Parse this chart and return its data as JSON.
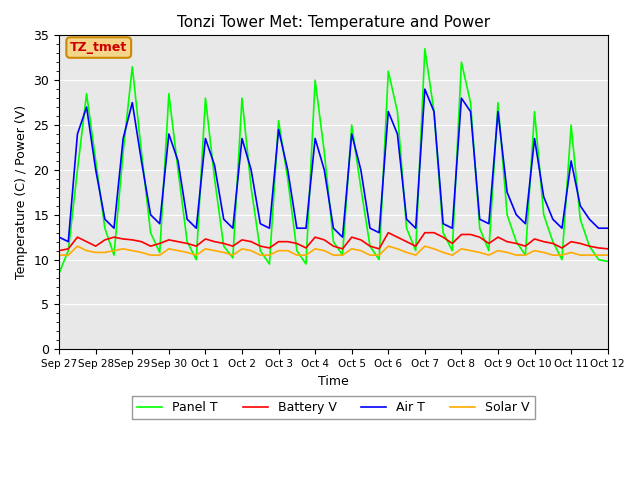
{
  "title": "Tonzi Tower Met: Temperature and Power",
  "xlabel": "Time",
  "ylabel": "Temperature (C) / Power (V)",
  "ylim": [
    0,
    35
  ],
  "yticks": [
    0,
    5,
    10,
    15,
    20,
    25,
    30,
    35
  ],
  "background_color": "#e8e8e8",
  "figure_color": "#ffffff",
  "annotation_text": "TZ_tmet",
  "annotation_color": "#cc0000",
  "annotation_bg": "#f5d58a",
  "annotation_border": "#cc8800",
  "line_colors": {
    "panel_t": "#00ff00",
    "battery_v": "#ff0000",
    "air_t": "#0000ff",
    "solar_v": "#ffaa00"
  },
  "legend_labels": [
    "Panel T",
    "Battery V",
    "Air T",
    "Solar V"
  ],
  "date_end": "2000-10-12",
  "x_tick_labels": [
    "Sep 27",
    "Sep 28",
    "Sep 29",
    "Sep 30",
    "Oct 1",
    "Oct 2",
    "Oct 3",
    "Oct 4",
    "Oct 5",
    "Oct 6",
    "Oct 7",
    "Oct 8",
    "Oct 9",
    "Oct 10",
    "Oct 11",
    "Oct 12"
  ],
  "panel_t": [
    8.5,
    11.0,
    20.0,
    28.5,
    21.0,
    13.5,
    10.5,
    22.0,
    31.5,
    22.0,
    13.0,
    10.8,
    28.5,
    20.0,
    12.0,
    10.0,
    28.0,
    19.0,
    11.5,
    10.2,
    28.0,
    18.0,
    11.0,
    9.5,
    25.5,
    19.0,
    11.0,
    9.5,
    30.0,
    22.0,
    12.0,
    10.5,
    25.0,
    18.0,
    11.5,
    10.0,
    31.0,
    26.5,
    13.5,
    11.0,
    33.5,
    26.5,
    13.0,
    11.0,
    32.0,
    27.5,
    13.5,
    11.0,
    27.5,
    15.0,
    12.0,
    10.5,
    26.5,
    15.0,
    12.0,
    10.0,
    25.0,
    14.5,
    11.5,
    10.0,
    9.8
  ],
  "battery_v": [
    11.0,
    11.2,
    12.5,
    12.0,
    11.5,
    12.2,
    12.5,
    12.3,
    12.2,
    12.0,
    11.5,
    11.8,
    12.2,
    12.0,
    11.8,
    11.5,
    12.3,
    12.0,
    11.8,
    11.5,
    12.2,
    12.0,
    11.5,
    11.3,
    12.0,
    12.0,
    11.8,
    11.3,
    12.5,
    12.2,
    11.5,
    11.2,
    12.5,
    12.2,
    11.5,
    11.2,
    13.0,
    12.5,
    12.0,
    11.5,
    13.0,
    13.0,
    12.5,
    11.8,
    12.8,
    12.8,
    12.5,
    11.8,
    12.5,
    12.0,
    11.8,
    11.5,
    12.3,
    12.0,
    11.8,
    11.3,
    12.0,
    11.8,
    11.5,
    11.3,
    11.2
  ],
  "air_t": [
    12.5,
    12.0,
    24.0,
    27.0,
    20.0,
    14.5,
    13.5,
    23.5,
    27.5,
    21.0,
    15.0,
    14.0,
    24.0,
    21.0,
    14.5,
    13.5,
    23.5,
    20.5,
    14.5,
    13.5,
    23.5,
    20.0,
    14.0,
    13.5,
    24.5,
    20.0,
    13.5,
    13.5,
    23.5,
    20.0,
    13.5,
    12.5,
    24.0,
    20.0,
    13.5,
    13.0,
    26.5,
    24.0,
    14.5,
    13.5,
    29.0,
    26.5,
    14.0,
    13.5,
    28.0,
    26.5,
    14.5,
    14.0,
    26.5,
    17.5,
    15.0,
    14.0,
    23.5,
    17.0,
    14.5,
    13.5,
    21.0,
    16.0,
    14.5,
    13.5,
    13.5
  ],
  "solar_v": [
    10.5,
    10.5,
    11.5,
    11.0,
    10.8,
    10.8,
    11.0,
    11.2,
    11.0,
    10.8,
    10.5,
    10.5,
    11.2,
    11.0,
    10.8,
    10.5,
    11.2,
    11.0,
    10.8,
    10.5,
    11.2,
    11.0,
    10.5,
    10.5,
    11.0,
    11.0,
    10.5,
    10.5,
    11.2,
    11.0,
    10.5,
    10.5,
    11.2,
    11.0,
    10.5,
    10.5,
    11.5,
    11.2,
    10.8,
    10.5,
    11.5,
    11.2,
    10.8,
    10.5,
    11.2,
    11.0,
    10.8,
    10.5,
    11.0,
    10.8,
    10.5,
    10.5,
    11.0,
    10.8,
    10.5,
    10.5,
    10.8,
    10.5,
    10.5,
    10.5,
    10.5
  ]
}
